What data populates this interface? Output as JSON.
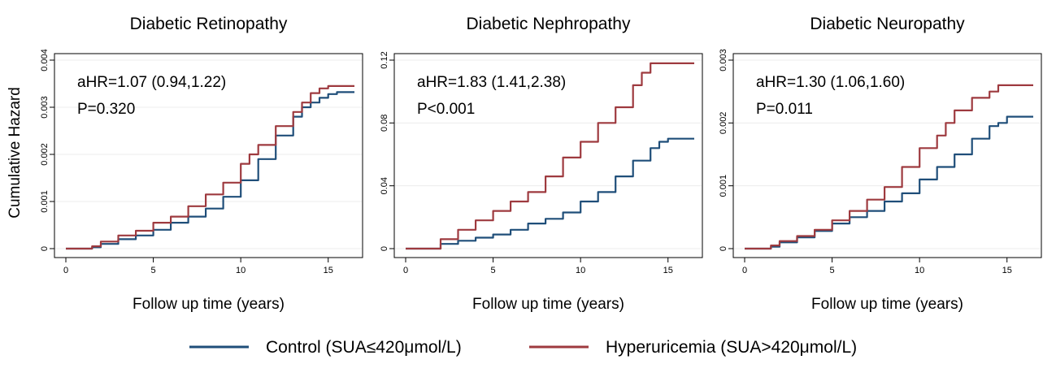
{
  "figure": {
    "y_axis_label": "Cumulative Hazard",
    "legend": {
      "placement": "bottom-center",
      "entries": [
        {
          "label": "Control (SUA≤420μmol/L)",
          "color": "#1f4e79"
        },
        {
          "label": "Hyperuricemia (SUA>420μmol/L)",
          "color": "#9e3a3f"
        }
      ]
    }
  },
  "chart_data": [
    {
      "type": "line",
      "title": "Diabetic Retinopathy",
      "xlabel": "Follow up time (years)",
      "ylabel": "Cumulative Hazard",
      "xlim": [
        0,
        16.5
      ],
      "ylim": [
        0,
        0.004
      ],
      "xticks": [
        0,
        5,
        10,
        15
      ],
      "xtick_labels": [
        "0",
        "5",
        "10",
        "15"
      ],
      "yticks": [
        0,
        0.001,
        0.002,
        0.003,
        0.004
      ],
      "ytick_labels": [
        "0",
        "0.001",
        "0.002",
        "0.003",
        "0.004"
      ],
      "grid": true,
      "annotation": [
        "aHR=1.07 (0.94,1.22)",
        "P=0.320"
      ],
      "series": [
        {
          "name": "Control (SUA≤420μmol/L)",
          "color": "#1f4e79",
          "x": [
            0,
            1,
            1.5,
            2,
            3,
            4,
            5,
            6,
            7,
            8,
            9,
            10,
            11,
            12,
            13,
            13.5,
            14,
            14.5,
            15,
            15.5,
            16.5
          ],
          "y": [
            0,
            0,
            3e-05,
            0.0001,
            0.0002,
            0.00028,
            0.0004,
            0.00055,
            0.00068,
            0.00085,
            0.0011,
            0.00145,
            0.0019,
            0.0024,
            0.0028,
            0.003,
            0.0031,
            0.0032,
            0.00328,
            0.00332,
            0.00332
          ]
        },
        {
          "name": "Hyperuricemia (SUA>420μmol/L)",
          "color": "#9e3a3f",
          "x": [
            0,
            1,
            1.5,
            2,
            3,
            4,
            5,
            6,
            7,
            8,
            9,
            10,
            10.5,
            11,
            12,
            13,
            13.5,
            14,
            14.5,
            15,
            16.5
          ],
          "y": [
            0,
            0,
            5e-05,
            0.00015,
            0.00028,
            0.00038,
            0.00055,
            0.00068,
            0.0009,
            0.00115,
            0.0014,
            0.0018,
            0.002,
            0.0022,
            0.0026,
            0.0029,
            0.0031,
            0.0033,
            0.0034,
            0.00345,
            0.00345
          ]
        }
      ]
    },
    {
      "type": "line",
      "title": "Diabetic Nephropathy",
      "xlabel": "Follow up time (years)",
      "ylabel": "",
      "xlim": [
        0,
        16.5
      ],
      "ylim": [
        0,
        0.12
      ],
      "xticks": [
        0,
        5,
        10,
        15
      ],
      "xtick_labels": [
        "0",
        "5",
        "10",
        "15"
      ],
      "yticks": [
        0,
        0.04,
        0.08,
        0.12
      ],
      "ytick_labels": [
        "0",
        "0.04",
        "0.08",
        "0.12"
      ],
      "grid": true,
      "annotation": [
        "aHR=1.83 (1.41,2.38)",
        "P<0.001"
      ],
      "series": [
        {
          "name": "Control (SUA≤420μmol/L)",
          "color": "#1f4e79",
          "x": [
            0,
            1,
            2,
            3,
            4,
            5,
            6,
            7,
            8,
            9,
            10,
            11,
            12,
            13,
            14,
            14.5,
            15,
            16.5
          ],
          "y": [
            0,
            0,
            0.003,
            0.005,
            0.007,
            0.009,
            0.012,
            0.016,
            0.019,
            0.023,
            0.03,
            0.036,
            0.046,
            0.056,
            0.064,
            0.068,
            0.07,
            0.07
          ]
        },
        {
          "name": "Hyperuricemia (SUA>420μmol/L)",
          "color": "#9e3a3f",
          "x": [
            0,
            1,
            2,
            3,
            4,
            5,
            6,
            7,
            8,
            9,
            10,
            11,
            12,
            13,
            13.5,
            14,
            16.5
          ],
          "y": [
            0,
            0,
            0.006,
            0.012,
            0.018,
            0.024,
            0.03,
            0.036,
            0.046,
            0.058,
            0.068,
            0.08,
            0.09,
            0.104,
            0.112,
            0.118,
            0.118
          ]
        }
      ]
    },
    {
      "type": "line",
      "title": "Diabetic Neuropathy",
      "xlabel": "Follow up time (years)",
      "ylabel": "",
      "xlim": [
        0,
        16.5
      ],
      "ylim": [
        0,
        0.003
      ],
      "xticks": [
        0,
        5,
        10,
        15
      ],
      "xtick_labels": [
        "0",
        "5",
        "10",
        "15"
      ],
      "yticks": [
        0,
        0.001,
        0.002,
        0.003
      ],
      "ytick_labels": [
        "0",
        "0.001",
        "0.002",
        "0.003"
      ],
      "grid": true,
      "annotation": [
        "aHR=1.30 (1.06,1.60)",
        "P=0.011"
      ],
      "series": [
        {
          "name": "Control (SUA≤420μmol/L)",
          "color": "#1f4e79",
          "x": [
            0,
            1,
            1.5,
            2,
            3,
            4,
            5,
            6,
            7,
            8,
            9,
            10,
            11,
            12,
            13,
            14,
            14.5,
            15,
            16.5
          ],
          "y": [
            0,
            0,
            3e-05,
            0.0001,
            0.00018,
            0.00028,
            0.0004,
            0.0005,
            0.0006,
            0.00075,
            0.00088,
            0.0011,
            0.0013,
            0.0015,
            0.00175,
            0.00195,
            0.002,
            0.0021,
            0.0021
          ]
        },
        {
          "name": "Hyperuricemia (SUA>420μmol/L)",
          "color": "#9e3a3f",
          "x": [
            0,
            1,
            1.5,
            2,
            3,
            4,
            5,
            6,
            7,
            8,
            9,
            10,
            11,
            11.5,
            12,
            13,
            14,
            14.5,
            16.5
          ],
          "y": [
            0,
            0,
            5e-05,
            0.00012,
            0.0002,
            0.0003,
            0.00045,
            0.0006,
            0.00078,
            0.00098,
            0.0013,
            0.0016,
            0.0018,
            0.002,
            0.0022,
            0.0024,
            0.0025,
            0.0026,
            0.0026
          ]
        }
      ]
    }
  ]
}
